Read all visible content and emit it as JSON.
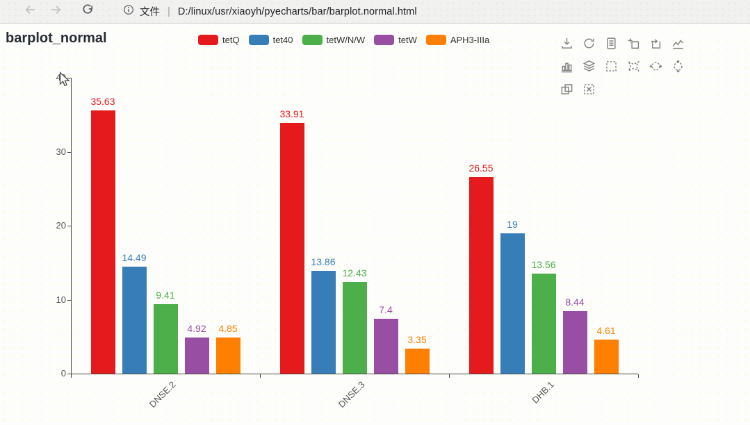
{
  "browser": {
    "file_label": "文件",
    "separator": "|",
    "url": "D:/linux/usr/xiaoyh/pyecharts/bar/barplot.normal.html"
  },
  "title": "barplot_normal",
  "chart_data": {
    "type": "bar",
    "title": "barplot_normal",
    "categories": [
      "DNSE.2",
      "DNSE.3",
      "DHB.1"
    ],
    "series": [
      {
        "name": "tetQ",
        "color": "#e41a1c",
        "values": [
          35.63,
          33.91,
          26.55
        ]
      },
      {
        "name": "tet40",
        "color": "#377eb8",
        "values": [
          14.49,
          13.86,
          19
        ]
      },
      {
        "name": "tetW/N/W",
        "color": "#4daf4a",
        "values": [
          9.41,
          12.43,
          13.56
        ]
      },
      {
        "name": "tetW",
        "color": "#984ea3",
        "values": [
          4.92,
          7.4,
          8.44
        ]
      },
      {
        "name": "APH3-IIIa",
        "color": "#ff7f00",
        "values": [
          4.85,
          3.35,
          4.61
        ]
      }
    ],
    "xlabel": "",
    "ylabel": "",
    "ylim": [
      0,
      40
    ],
    "yticks": [
      0,
      10,
      20,
      30,
      40
    ],
    "grid": false,
    "legend_position": "top",
    "value_labels": true,
    "xlabel_rotation": 45,
    "axis_color": "#464646",
    "axis_text_color": "#545454"
  },
  "toolbox_icons": [
    "save-image",
    "restore",
    "data-view",
    "data-zoom",
    "data-zoom-reset",
    "magic-type-line",
    "magic-type-bar",
    "magic-type-stack",
    "brush-rect",
    "brush-polygon",
    "brush-line-x",
    "brush-line-y",
    "magic-type-tiled",
    "brush-clear"
  ]
}
